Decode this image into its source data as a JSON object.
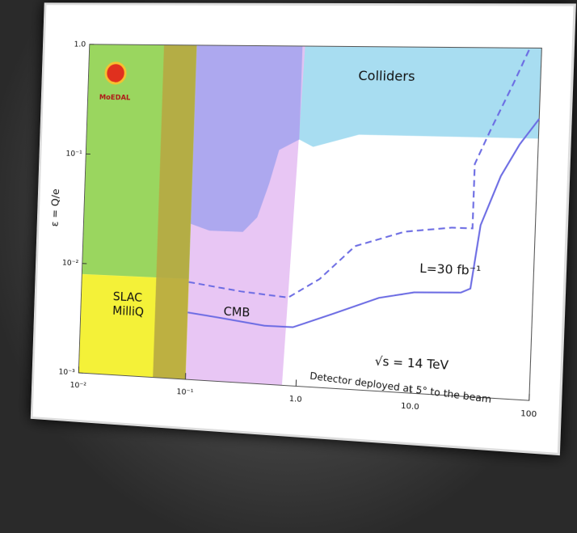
{
  "chart_data": {
    "type": "line",
    "ylabel": "ε = Q/e",
    "xscale": "log",
    "yscale": "log",
    "xlim": [
      0.01,
      100
    ],
    "ylim": [
      0.001,
      1
    ],
    "xticks": [
      {
        "value": 0.01,
        "label": "10⁻²"
      },
      {
        "value": 0.1,
        "label": "10⁻¹"
      },
      {
        "value": 1,
        "label": "1.0"
      },
      {
        "value": 10,
        "label": "10.0"
      },
      100
    ],
    "yticks": [
      {
        "value": 1,
        "label": "1.0"
      },
      {
        "value": 0.1,
        "label": "10⁻¹"
      },
      {
        "value": 0.01,
        "label": "10⁻²"
      },
      {
        "value": 0.001,
        "label": "10⁻³"
      }
    ],
    "regions": [
      {
        "color": "#9fd9ef",
        "x": [
          0.9,
          100,
          100,
          3,
          1.2,
          0.9
        ],
        "y": [
          1,
          1,
          0.17,
          0.17,
          0.13,
          0.15
        ]
      },
      {
        "color": "#e5c0f3",
        "x": [
          0.1,
          0.95,
          0.75,
          0.1
        ],
        "y": [
          1,
          1,
          0.001,
          0.001
        ]
      },
      {
        "color": "#a6a4ee",
        "x": [
          0.1,
          0.9,
          0.9,
          0.6,
          0.5,
          0.4,
          0.3,
          0.15,
          0.1
        ],
        "y": [
          1,
          1,
          0.15,
          0.12,
          0.06,
          0.03,
          0.022,
          0.022,
          0.025
        ]
      },
      {
        "color": "#8fd24e",
        "x": [
          0.01,
          0.1,
          0.1,
          0.01
        ],
        "y": [
          1,
          1,
          0.008,
          0.008
        ]
      },
      {
        "color": "#f3ef22",
        "x": [
          0.01,
          0.1,
          0.1,
          0.01
        ],
        "y": [
          0.008,
          0.008,
          0.001,
          0.001
        ]
      },
      {
        "color": "#b7a842",
        "x": [
          0.05,
          0.1,
          0.1,
          0.05
        ],
        "y": [
          1,
          1,
          0.001,
          0.001
        ]
      }
    ],
    "series": [
      {
        "color": "#6b6be3",
        "style": "solid",
        "x": [
          0.1,
          0.2,
          0.5,
          0.9,
          2,
          5,
          10,
          25,
          30,
          35,
          50,
          70,
          100
        ],
        "values": [
          0.004,
          0.0037,
          0.0033,
          0.0033,
          0.0045,
          0.0065,
          0.0075,
          0.0078,
          0.0085,
          0.03,
          0.08,
          0.15,
          0.25
        ]
      },
      {
        "color": "#6b6be3",
        "style": "dashed",
        "x": [
          0.1,
          0.3,
          0.8,
          1.5,
          3,
          8,
          20,
          30,
          30,
          40,
          60,
          80
        ],
        "values": [
          0.0075,
          0.0065,
          0.006,
          0.009,
          0.018,
          0.025,
          0.028,
          0.028,
          0.1,
          0.2,
          0.5,
          1
        ]
      }
    ],
    "annotations": [
      "MoEDAL",
      "Colliders",
      "SLAC MilliQ",
      "CMB",
      "L=30 fb⁻¹",
      "√s = 14 TeV",
      "Detector deployed at 5° to the beam"
    ]
  }
}
